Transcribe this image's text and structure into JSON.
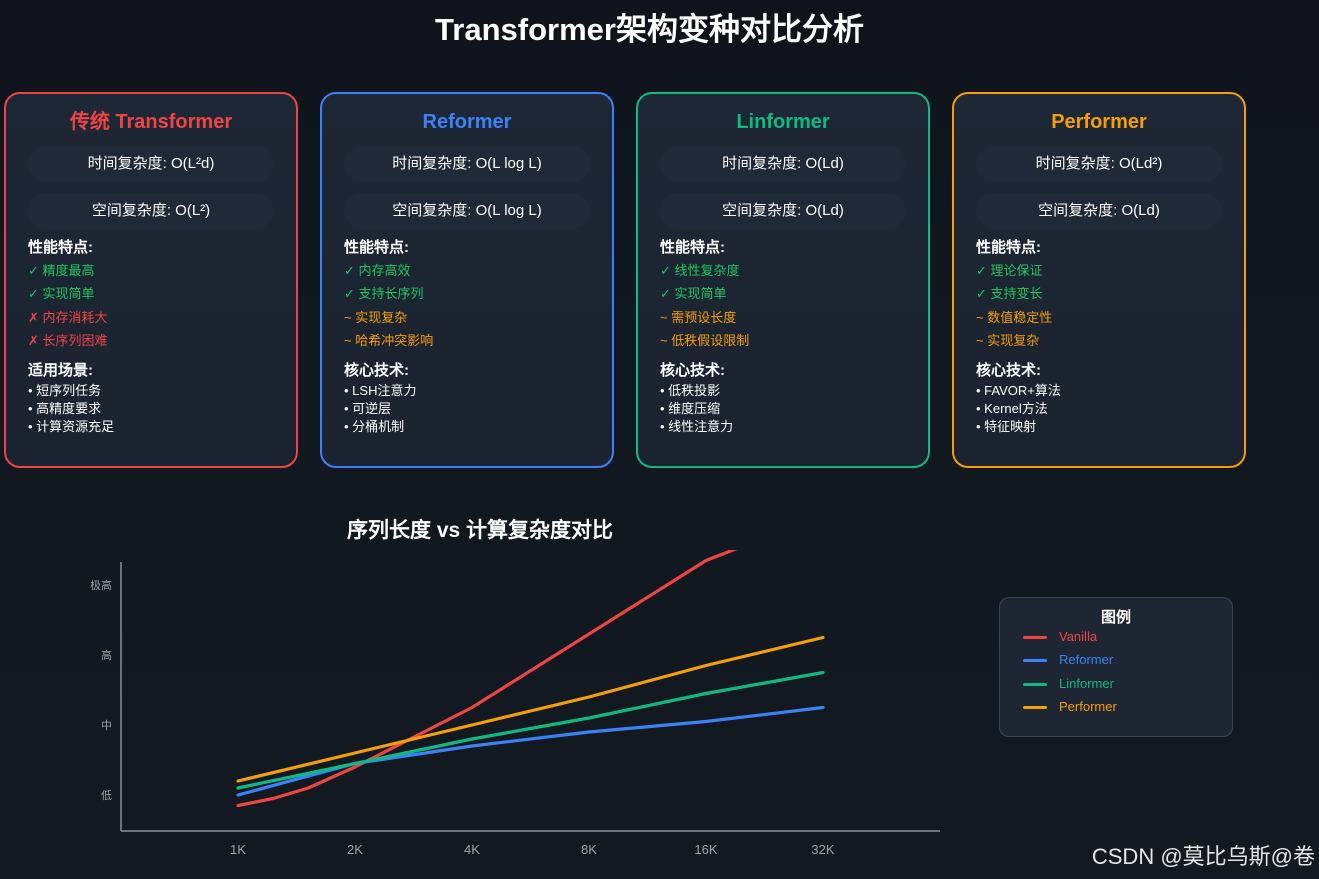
{
  "page_title": "Transformer架构变种对比分析",
  "cards": [
    {
      "title": "传统 Transformer",
      "color": "#ef4444",
      "time_complexity": "时间复杂度: O(L²d)",
      "space_complexity": "空间复杂度: O(L²)",
      "perf_heading": "性能特点:",
      "features": [
        {
          "text": "✓ 精度最高",
          "kind": "pro"
        },
        {
          "text": "✓ 实现简单",
          "kind": "pro"
        },
        {
          "text": "✗ 内存消耗大",
          "kind": "con"
        },
        {
          "text": "✗ 长序列困难",
          "kind": "con"
        }
      ],
      "second_heading": "适用场景:",
      "bullets": [
        "• 短序列任务",
        "• 高精度要求",
        "• 计算资源充足"
      ]
    },
    {
      "title": "Reformer",
      "color": "#3b82f6",
      "time_complexity": "时间复杂度: O(L log L)",
      "space_complexity": "空间复杂度: O(L log L)",
      "perf_heading": "性能特点:",
      "features": [
        {
          "text": "✓ 内存高效",
          "kind": "pro"
        },
        {
          "text": "✓ 支持长序列",
          "kind": "pro"
        },
        {
          "text": "~ 实现复杂",
          "kind": "mid"
        },
        {
          "text": "~ 哈希冲突影响",
          "kind": "mid"
        }
      ],
      "second_heading": "核心技术:",
      "bullets": [
        "• LSH注意力",
        "• 可逆层",
        "• 分桶机制"
      ]
    },
    {
      "title": "Linformer",
      "color": "#10b981",
      "time_complexity": "时间复杂度: O(Ld)",
      "space_complexity": "空间复杂度: O(Ld)",
      "perf_heading": "性能特点:",
      "features": [
        {
          "text": "✓ 线性复杂度",
          "kind": "pro"
        },
        {
          "text": "✓ 实现简单",
          "kind": "pro"
        },
        {
          "text": "~ 需预设长度",
          "kind": "mid"
        },
        {
          "text": "~ 低秩假设限制",
          "kind": "mid"
        }
      ],
      "second_heading": "核心技术:",
      "bullets": [
        "• 低秩投影",
        "• 维度压缩",
        "• 线性注意力"
      ]
    },
    {
      "title": "Performer",
      "color": "#f59e0b",
      "time_complexity": "时间复杂度: O(Ld²)",
      "space_complexity": "空间复杂度: O(Ld)",
      "perf_heading": "性能特点:",
      "features": [
        {
          "text": "✓ 理论保证",
          "kind": "pro"
        },
        {
          "text": "✓ 支持变长",
          "kind": "pro"
        },
        {
          "text": "~ 数值稳定性",
          "kind": "mid"
        },
        {
          "text": "~ 实现复杂",
          "kind": "mid"
        }
      ],
      "second_heading": "核心技术:",
      "bullets": [
        "• FAVOR+算法",
        "• Kernel方法",
        "• 特征映射"
      ]
    }
  ],
  "chart_data": {
    "type": "line",
    "title": "序列长度 vs 计算复杂度对比",
    "xlabel": "",
    "ylabel": "",
    "categories": [
      "1K",
      "2K",
      "4K",
      "8K",
      "16K",
      "32K"
    ],
    "y_tick_labels": [
      "低",
      "中",
      "高",
      "极高"
    ],
    "y_tick_values": [
      0.5,
      1.5,
      2.5,
      3.5
    ],
    "ylim": [
      0,
      4.0
    ],
    "grid": false,
    "series": [
      {
        "name": "Vanilla",
        "color": "#ef4444",
        "x": [
          0,
          0.3,
          0.6,
          1,
          2,
          3,
          4,
          5
        ],
        "values": [
          0.35,
          0.45,
          0.6,
          0.9,
          1.75,
          2.8,
          3.85,
          4.5
        ]
      },
      {
        "name": "Reformer",
        "color": "#3b82f6",
        "x": [
          0,
          1,
          2,
          3,
          4,
          5
        ],
        "values": [
          0.5,
          0.95,
          1.2,
          1.4,
          1.55,
          1.75
        ]
      },
      {
        "name": "Linformer",
        "color": "#10b981",
        "x": [
          0,
          1,
          2,
          3,
          4,
          5
        ],
        "values": [
          0.6,
          0.95,
          1.3,
          1.6,
          1.95,
          2.25
        ]
      },
      {
        "name": "Performer",
        "color": "#f59e0b",
        "x": [
          0,
          1,
          2,
          3,
          4,
          5
        ],
        "values": [
          0.7,
          1.1,
          1.5,
          1.9,
          2.35,
          2.75
        ]
      }
    ],
    "legend_title": "图例",
    "legend_position": "right"
  },
  "watermark": "CSDN @莫比乌斯@卷"
}
